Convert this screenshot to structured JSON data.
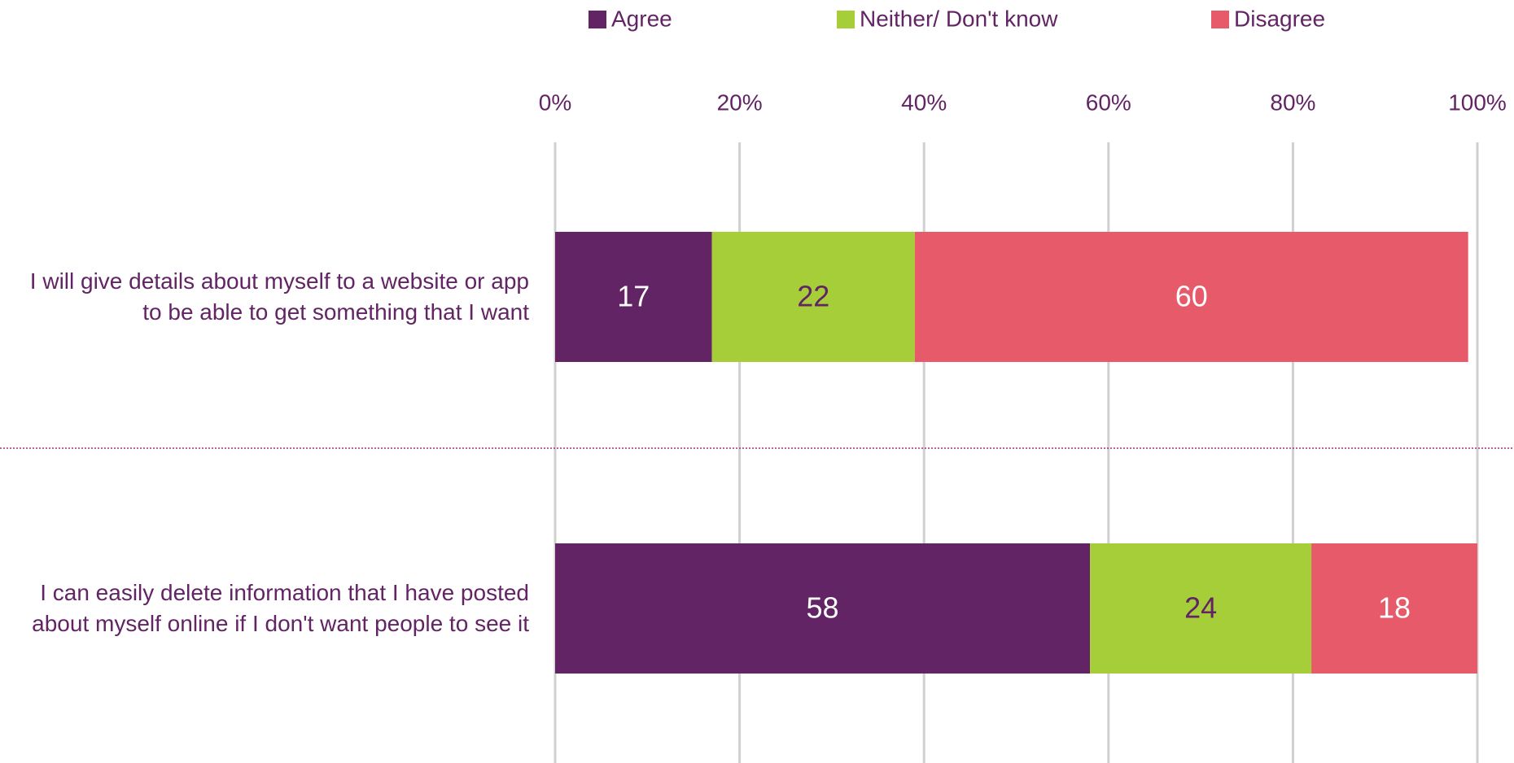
{
  "chart_data": {
    "type": "stacked_barh",
    "categories": [
      "I will give details about myself to a website or app to be able to get something that I want",
      "I can easily delete information that I have posted about myself online if I don't want people to see it"
    ],
    "series": [
      {
        "name": "Agree",
        "color": "#622464",
        "values": [
          17,
          58
        ]
      },
      {
        "name": "Neither/ Don't know",
        "color": "#a6ce39",
        "values": [
          22,
          24
        ]
      },
      {
        "name": "Disagree",
        "color": "#e75a6a",
        "values": [
          60,
          18
        ]
      }
    ],
    "xlim": [
      0,
      100
    ],
    "xticks": [
      {
        "value": 0,
        "label": "0%"
      },
      {
        "value": 20,
        "label": "20%"
      },
      {
        "value": 40,
        "label": "40%"
      },
      {
        "value": 60,
        "label": "60%"
      },
      {
        "value": 80,
        "label": "80%"
      },
      {
        "value": 100,
        "label": "100%"
      }
    ],
    "grid": true,
    "legend": "top"
  }
}
